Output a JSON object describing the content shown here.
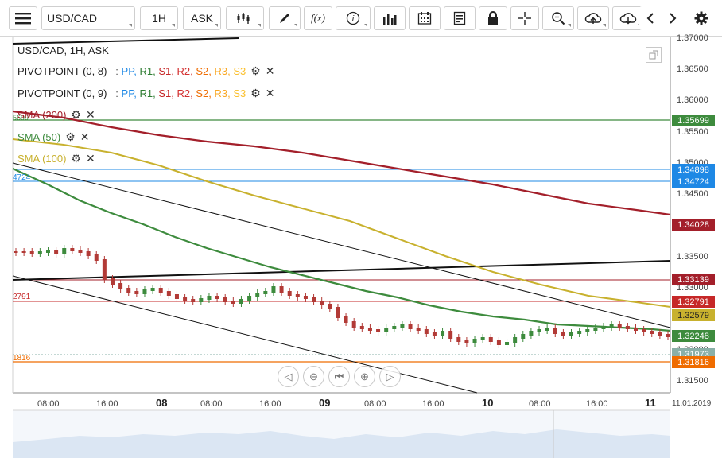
{
  "toolbar": {
    "menu_icon": "hamburger-menu-icon",
    "symbol": "USD/CAD",
    "timeframe": "1H",
    "price_type": "ASK",
    "tools": [
      "chart-type-icon",
      "draw-icon",
      "function-icon",
      "info-icon",
      "bar-chart-icon",
      "calendar-icon",
      "template-icon",
      "lock-icon",
      "crosshair-icon",
      "zoom-icon",
      "cloud-upload-icon",
      "cloud-download-icon",
      "chevron-left-icon",
      "chevron-right-icon",
      "settings-gear-icon"
    ],
    "fx_label": "f(x)"
  },
  "legend": {
    "title": "USD/CAD, 1H, ASK",
    "pivot1": {
      "name": "PIVOTPOINT (0, 8)",
      "sep": ":",
      "pp": "PP,",
      "r1": "R1,",
      "s1": "S1,",
      "r2": "R2,",
      "s2": "S2,",
      "r3": "R3,",
      "s3": "S3"
    },
    "pivot2": {
      "name": "PIVOTPOINT (0, 9)",
      "sep": ":",
      "pp": "PP,",
      "r1": "R1,",
      "s1": "S1,",
      "r2": "R2,",
      "s2": "S2,",
      "r3": "R3,",
      "s3": "S3"
    },
    "sma200": "SMA (200)",
    "sma50": "SMA (50)",
    "sma100": "SMA (100)"
  },
  "colors": {
    "pp": "#1e88e5",
    "r1": "#2e7d32",
    "s1": "#c62828",
    "r2": "#d32f2f",
    "s2": "#ef6c00",
    "r3": "#f9a825",
    "s3": "#fbc02d",
    "sma200": "#a31f2a",
    "sma50": "#3d8b3d",
    "sma100": "#c8b12e",
    "candle_up": "#3d8b3d",
    "candle_down": "#b23a36"
  },
  "y_axis": [
    "1.37000",
    "1.36500",
    "1.36000",
    "1.35500",
    "1.35000",
    "1.34500",
    "1.33500",
    "1.33000",
    "1.32000",
    "1.31500"
  ],
  "price_tags": [
    {
      "value": "1.35699",
      "color": "#3d8b3d"
    },
    {
      "value": "1.34898",
      "color": "#1e88e5"
    },
    {
      "value": "1.34724",
      "color": "#1e88e5"
    },
    {
      "value": "1.34028",
      "color": "#a31f2a"
    },
    {
      "value": "1.33139",
      "color": "#a31f2a"
    },
    {
      "value": "1.32791",
      "color": "#c62828"
    },
    {
      "value": "1.32579",
      "color": "#c8b12e"
    },
    {
      "value": "1.32248",
      "color": "#3d8b3d"
    },
    {
      "value": "1.31973",
      "color": "#8ab0a8"
    },
    {
      "value": "1.31816",
      "color": "#ef6c00"
    }
  ],
  "left_edge_labels": {
    "top": "5699",
    "blue": "4724",
    "red": "2791",
    "orange": "1816"
  },
  "x_axis": [
    {
      "label": "08:00",
      "bold": false
    },
    {
      "label": "16:00",
      "bold": false
    },
    {
      "label": "08",
      "bold": true
    },
    {
      "label": "08:00",
      "bold": false
    },
    {
      "label": "16:00",
      "bold": false
    },
    {
      "label": "09",
      "bold": true
    },
    {
      "label": "08:00",
      "bold": false
    },
    {
      "label": "16:00",
      "bold": false
    },
    {
      "label": "10",
      "bold": true
    },
    {
      "label": "08:00",
      "bold": false
    },
    {
      "label": "16:00",
      "bold": false
    },
    {
      "label": "11",
      "bold": true
    }
  ],
  "date_label": "11.01.2019",
  "nav_icons": [
    "scroll-left-icon",
    "zoom-out-icon",
    "reset-zoom-icon",
    "zoom-in-icon",
    "scroll-right-icon"
  ]
}
